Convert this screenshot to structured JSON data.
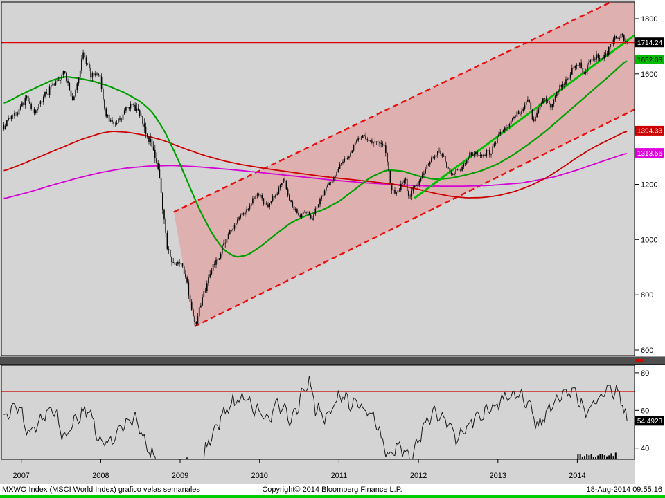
{
  "footer": {
    "left": "MXWO Index (MSCI World Index) grafico velas semanales",
    "center": "Copyright© 2014 Bloomberg Finance L.P.",
    "right": "18-Aug-2014 09:55:16"
  },
  "colors": {
    "panel_bg": "#d4d4d4",
    "candle": "#000000",
    "ma_green": "#00a000",
    "trend_green": "#00c000",
    "ma_red": "#cc0000",
    "ma_magenta": "#d400d4",
    "channel_line": "#e81010",
    "channel_fill": "rgba(232,140,140,0.5)",
    "resistance": "#dd0000",
    "rsi_line": "#1a1a1a",
    "rsi_threshold": "#cc2222",
    "axis_text": "#000000",
    "divider": "#4f4f4f",
    "divider_tick": "#d00000",
    "footer_bg": "#ffffff",
    "bottom_strip": "#00cc00"
  },
  "chart_data": [
    {
      "type": "candlestick",
      "title": "MXWO Index (MSCI World Index) weekly candles",
      "x_domain": [
        2006.75,
        2014.72
      ],
      "y_domain": [
        580,
        1860
      ],
      "x_ticks": [
        2007,
        2008,
        2009,
        2010,
        2011,
        2012,
        2013,
        2014
      ],
      "y_ticks": [
        1800,
        1600,
        1400,
        1200,
        1000,
        800,
        600
      ],
      "last_price": 1714.24,
      "grid": false,
      "legend": "none",
      "price_anchors": [
        [
          2006.78,
          1415
        ],
        [
          2006.9,
          1450
        ],
        [
          2007.0,
          1483
        ],
        [
          2007.08,
          1510
        ],
        [
          2007.17,
          1455
        ],
        [
          2007.3,
          1530
        ],
        [
          2007.45,
          1575
        ],
        [
          2007.54,
          1615
        ],
        [
          2007.63,
          1505
        ],
        [
          2007.7,
          1560
        ],
        [
          2007.78,
          1675
        ],
        [
          2007.88,
          1600
        ],
        [
          2007.99,
          1588
        ],
        [
          2008.07,
          1450
        ],
        [
          2008.15,
          1415
        ],
        [
          2008.25,
          1440
        ],
        [
          2008.4,
          1495
        ],
        [
          2008.55,
          1420
        ],
        [
          2008.65,
          1330
        ],
        [
          2008.72,
          1270
        ],
        [
          2008.78,
          1120
        ],
        [
          2008.84,
          955
        ],
        [
          2008.92,
          915
        ],
        [
          2009.0,
          920
        ],
        [
          2009.08,
          855
        ],
        [
          2009.16,
          720
        ],
        [
          2009.2,
          695
        ],
        [
          2009.28,
          790
        ],
        [
          2009.38,
          875
        ],
        [
          2009.48,
          945
        ],
        [
          2009.58,
          1000
        ],
        [
          2009.68,
          1055
        ],
        [
          2009.78,
          1085
        ],
        [
          2009.88,
          1125
        ],
        [
          2010.0,
          1168
        ],
        [
          2010.1,
          1115
        ],
        [
          2010.2,
          1165
        ],
        [
          2010.3,
          1215
        ],
        [
          2010.42,
          1115
        ],
        [
          2010.5,
          1080
        ],
        [
          2010.58,
          1115
        ],
        [
          2010.66,
          1070
        ],
        [
          2010.75,
          1145
        ],
        [
          2010.85,
          1185
        ],
        [
          2010.95,
          1230
        ],
        [
          2011.05,
          1285
        ],
        [
          2011.15,
          1320
        ],
        [
          2011.3,
          1380
        ],
        [
          2011.4,
          1350
        ],
        [
          2011.5,
          1365
        ],
        [
          2011.58,
          1320
        ],
        [
          2011.64,
          1220
        ],
        [
          2011.7,
          1165
        ],
        [
          2011.78,
          1185
        ],
        [
          2011.83,
          1235
        ],
        [
          2011.88,
          1145
        ],
        [
          2011.95,
          1190
        ],
        [
          2012.05,
          1235
        ],
        [
          2012.15,
          1285
        ],
        [
          2012.25,
          1325
        ],
        [
          2012.35,
          1275
        ],
        [
          2012.43,
          1230
        ],
        [
          2012.52,
          1255
        ],
        [
          2012.62,
          1295
        ],
        [
          2012.72,
          1320
        ],
        [
          2012.8,
          1305
        ],
        [
          2012.9,
          1315
        ],
        [
          2013.0,
          1375
        ],
        [
          2013.1,
          1410
        ],
        [
          2013.2,
          1440
        ],
        [
          2013.3,
          1470
        ],
        [
          2013.38,
          1505
        ],
        [
          2013.45,
          1430
        ],
        [
          2013.53,
          1485
        ],
        [
          2013.6,
          1520
        ],
        [
          2013.66,
          1478
        ],
        [
          2013.75,
          1540
        ],
        [
          2013.85,
          1575
        ],
        [
          2013.95,
          1615
        ],
        [
          2014.02,
          1648
        ],
        [
          2014.08,
          1588
        ],
        [
          2014.15,
          1638
        ],
        [
          2014.22,
          1668
        ],
        [
          2014.3,
          1648
        ],
        [
          2014.38,
          1688
        ],
        [
          2014.45,
          1718
        ],
        [
          2014.52,
          1742
        ],
        [
          2014.56,
          1762
        ],
        [
          2014.6,
          1712
        ],
        [
          2014.63,
          1714.24
        ]
      ],
      "overlays": [
        {
          "name": "ma-green",
          "style": "curve",
          "color_key": "ma_green",
          "width": 2.2,
          "last_value": 1652.03,
          "anchors": [
            [
              2006.78,
              1492
            ],
            [
              2007.0,
              1525
            ],
            [
              2007.2,
              1552
            ],
            [
              2007.4,
              1578
            ],
            [
              2007.55,
              1590
            ],
            [
              2007.7,
              1585
            ],
            [
              2007.9,
              1574
            ],
            [
              2008.1,
              1556
            ],
            [
              2008.3,
              1532
            ],
            [
              2008.5,
              1500
            ],
            [
              2008.65,
              1462
            ],
            [
              2008.8,
              1395
            ],
            [
              2008.95,
              1305
            ],
            [
              2009.1,
              1205
            ],
            [
              2009.25,
              1105
            ],
            [
              2009.4,
              1022
            ],
            [
              2009.55,
              962
            ],
            [
              2009.7,
              936
            ],
            [
              2009.85,
              944
            ],
            [
              2010.0,
              972
            ],
            [
              2010.2,
              1018
            ],
            [
              2010.4,
              1062
            ],
            [
              2010.6,
              1088
            ],
            [
              2010.8,
              1108
            ],
            [
              2011.0,
              1138
            ],
            [
              2011.2,
              1182
            ],
            [
              2011.4,
              1226
            ],
            [
              2011.6,
              1252
            ],
            [
              2011.8,
              1248
            ],
            [
              2012.0,
              1230
            ],
            [
              2012.2,
              1218
            ],
            [
              2012.4,
              1222
            ],
            [
              2012.6,
              1234
            ],
            [
              2012.8,
              1250
            ],
            [
              2013.0,
              1274
            ],
            [
              2013.2,
              1308
            ],
            [
              2013.4,
              1348
            ],
            [
              2013.6,
              1392
            ],
            [
              2013.8,
              1442
            ],
            [
              2014.0,
              1492
            ],
            [
              2014.2,
              1542
            ],
            [
              2014.4,
              1592
            ],
            [
              2014.63,
              1652.03
            ]
          ]
        },
        {
          "name": "ma-red",
          "style": "curve",
          "color_key": "ma_red",
          "width": 1.8,
          "last_value": 1394.33,
          "anchors": [
            [
              2006.78,
              1248
            ],
            [
              2007.0,
              1272
            ],
            [
              2007.25,
              1302
            ],
            [
              2007.5,
              1332
            ],
            [
              2007.75,
              1362
            ],
            [
              2008.0,
              1385
            ],
            [
              2008.15,
              1392
            ],
            [
              2008.35,
              1388
            ],
            [
              2008.55,
              1378
            ],
            [
              2008.8,
              1358
            ],
            [
              2009.05,
              1330
            ],
            [
              2009.3,
              1305
            ],
            [
              2009.55,
              1285
            ],
            [
              2009.8,
              1270
            ],
            [
              2010.1,
              1256
            ],
            [
              2010.4,
              1244
            ],
            [
              2010.7,
              1232
            ],
            [
              2011.0,
              1222
            ],
            [
              2011.4,
              1210
            ],
            [
              2011.7,
              1200
            ],
            [
              2012.0,
              1182
            ],
            [
              2012.2,
              1168
            ],
            [
              2012.4,
              1157
            ],
            [
              2012.6,
              1151
            ],
            [
              2012.8,
              1152
            ],
            [
              2013.0,
              1159
            ],
            [
              2013.2,
              1173
            ],
            [
              2013.4,
              1194
            ],
            [
              2013.6,
              1222
            ],
            [
              2013.8,
              1258
            ],
            [
              2014.0,
              1298
            ],
            [
              2014.2,
              1333
            ],
            [
              2014.42,
              1365
            ],
            [
              2014.63,
              1394.33
            ]
          ]
        },
        {
          "name": "ma-magenta",
          "style": "curve",
          "color_key": "ma_magenta",
          "width": 1.8,
          "last_value": 1313.56,
          "anchors": [
            [
              2006.78,
              1148
            ],
            [
              2007.1,
              1172
            ],
            [
              2007.4,
              1198
            ],
            [
              2007.7,
              1222
            ],
            [
              2008.0,
              1243
            ],
            [
              2008.3,
              1258
            ],
            [
              2008.6,
              1266
            ],
            [
              2008.9,
              1268
            ],
            [
              2009.2,
              1264
            ],
            [
              2009.5,
              1257
            ],
            [
              2009.8,
              1249
            ],
            [
              2010.1,
              1240
            ],
            [
              2010.5,
              1228
            ],
            [
              2010.9,
              1216
            ],
            [
              2011.3,
              1206
            ],
            [
              2011.7,
              1199
            ],
            [
              2012.1,
              1194
            ],
            [
              2012.5,
              1193
            ],
            [
              2012.9,
              1196
            ],
            [
              2013.3,
              1205
            ],
            [
              2013.7,
              1226
            ],
            [
              2014.0,
              1252
            ],
            [
              2014.3,
              1282
            ],
            [
              2014.63,
              1313.56
            ]
          ]
        },
        {
          "name": "trendline-green",
          "style": "line",
          "color_key": "trend_green",
          "width": 3,
          "points": [
            [
              2011.95,
              1150
            ],
            [
              2014.72,
              1740
            ]
          ]
        }
      ],
      "annotations": {
        "resistance_line": {
          "value": 1714.24,
          "color_key": "resistance",
          "width": 2
        },
        "channel": {
          "upper": [
            [
              2008.92,
              1100
            ],
            [
              2014.75,
              1905
            ]
          ],
          "lower": [
            [
              2009.18,
              685
            ],
            [
              2014.75,
              1475
            ]
          ],
          "dash": "8 5",
          "line_color_key": "channel_line",
          "fill_color_key": "channel_fill"
        }
      },
      "axis_labels": [
        {
          "text": "1714.24",
          "value": 1714.24,
          "bg": "#000000",
          "fg": "#ffffff"
        },
        {
          "text": "1652.03",
          "value": 1652.03,
          "bg": "#00bb00",
          "fg": "#000000"
        },
        {
          "text": "1394.33",
          "value": 1394.33,
          "bg": "#cc0000",
          "fg": "#ffffff"
        },
        {
          "text": "1313.56",
          "value": 1313.56,
          "bg": "#dd00dd",
          "fg": "#ffffff"
        }
      ]
    },
    {
      "type": "line",
      "title": "Weekly oscillator (RSI)",
      "y_domain": [
        34,
        84
      ],
      "y_ticks": [
        80,
        60,
        40
      ],
      "last_value": 54.4923,
      "threshold_line": {
        "value": 70,
        "color_key": "rsi_threshold"
      },
      "anchors": [
        [
          2006.78,
          55
        ],
        [
          2006.95,
          63
        ],
        [
          2007.1,
          47
        ],
        [
          2007.25,
          56
        ],
        [
          2007.4,
          62
        ],
        [
          2007.55,
          44
        ],
        [
          2007.7,
          57
        ],
        [
          2007.85,
          61
        ],
        [
          2008.0,
          41
        ],
        [
          2008.15,
          45
        ],
        [
          2008.3,
          53
        ],
        [
          2008.45,
          56
        ],
        [
          2008.6,
          40
        ],
        [
          2008.75,
          30
        ],
        [
          2008.9,
          26
        ],
        [
          2009.05,
          34
        ],
        [
          2009.2,
          24
        ],
        [
          2009.35,
          42
        ],
        [
          2009.5,
          55
        ],
        [
          2009.65,
          64
        ],
        [
          2009.8,
          67
        ],
        [
          2009.95,
          61
        ],
        [
          2010.1,
          56
        ],
        [
          2010.25,
          64
        ],
        [
          2010.4,
          54
        ],
        [
          2010.55,
          70
        ],
        [
          2010.62,
          77
        ],
        [
          2010.7,
          62
        ],
        [
          2010.85,
          56
        ],
        [
          2011.0,
          67
        ],
        [
          2011.15,
          64
        ],
        [
          2011.3,
          61
        ],
        [
          2011.45,
          56
        ],
        [
          2011.6,
          36
        ],
        [
          2011.75,
          42
        ],
        [
          2011.9,
          33
        ],
        [
          2012.05,
          50
        ],
        [
          2012.2,
          61
        ],
        [
          2012.35,
          54
        ],
        [
          2012.5,
          44
        ],
        [
          2012.65,
          54
        ],
        [
          2012.8,
          58
        ],
        [
          2012.95,
          62
        ],
        [
          2013.1,
          67
        ],
        [
          2013.25,
          69
        ],
        [
          2013.4,
          63
        ],
        [
          2013.5,
          51
        ],
        [
          2013.65,
          61
        ],
        [
          2013.8,
          69
        ],
        [
          2013.95,
          71
        ],
        [
          2014.1,
          58
        ],
        [
          2014.25,
          65
        ],
        [
          2014.4,
          71
        ],
        [
          2014.52,
          69
        ],
        [
          2014.63,
          54.4923
        ]
      ],
      "axis_labels": [
        {
          "text": "54.4923",
          "value": 54.4923,
          "bg": "#000000",
          "fg": "#ffffff"
        }
      ]
    }
  ]
}
